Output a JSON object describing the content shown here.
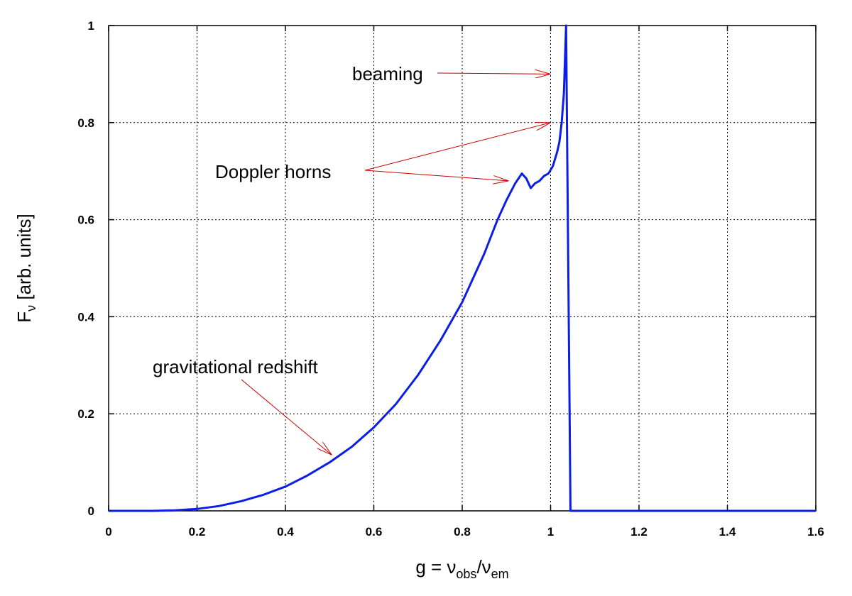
{
  "chart_data": {
    "type": "line",
    "title": "",
    "xlabel": {
      "base": "g = ν",
      "sub1": "obs",
      "mid": "/ν",
      "sub2": "em"
    },
    "ylabel": {
      "base": "F",
      "sub": "ν",
      "rest": " [arb. units]"
    },
    "xlim": [
      0,
      1.6
    ],
    "ylim": [
      0,
      1
    ],
    "grid": true,
    "x_ticks": [
      "0",
      "0.2",
      "0.4",
      "0.6",
      "0.8",
      "1",
      "1.2",
      "1.4",
      "1.6"
    ],
    "y_ticks": [
      "0",
      "0.2",
      "0.4",
      "0.6",
      "0.8",
      "1"
    ],
    "series": [
      {
        "color": "#0a1ee6",
        "x": [
          0,
          0.1,
          0.15,
          0.2,
          0.25,
          0.3,
          0.35,
          0.4,
          0.45,
          0.5,
          0.55,
          0.6,
          0.65,
          0.7,
          0.75,
          0.8,
          0.85,
          0.88,
          0.9,
          0.92,
          0.935,
          0.945,
          0.955,
          0.965,
          0.975,
          0.985,
          0.995,
          1.005,
          1.015,
          1.02,
          1.025,
          1.03,
          1.035,
          1.04,
          1.045,
          1.1,
          1.2,
          1.4,
          1.6
        ],
        "y": [
          0,
          0,
          0.001,
          0.004,
          0.01,
          0.02,
          0.033,
          0.05,
          0.073,
          0.1,
          0.132,
          0.172,
          0.22,
          0.28,
          0.35,
          0.43,
          0.53,
          0.6,
          0.64,
          0.675,
          0.695,
          0.685,
          0.665,
          0.675,
          0.68,
          0.69,
          0.695,
          0.71,
          0.74,
          0.76,
          0.8,
          0.86,
          1.0,
          0.5,
          0.0,
          0,
          0,
          0,
          0
        ]
      }
    ],
    "annotations": [
      {
        "text": "beaming",
        "target": [
          1.0,
          0.9
        ]
      },
      {
        "text": "Doppler horns",
        "targets": [
          [
            1.0,
            0.8
          ],
          [
            0.905,
            0.68
          ]
        ]
      },
      {
        "text": "gravitational redshift",
        "target": [
          0.505,
          0.115
        ]
      }
    ]
  }
}
